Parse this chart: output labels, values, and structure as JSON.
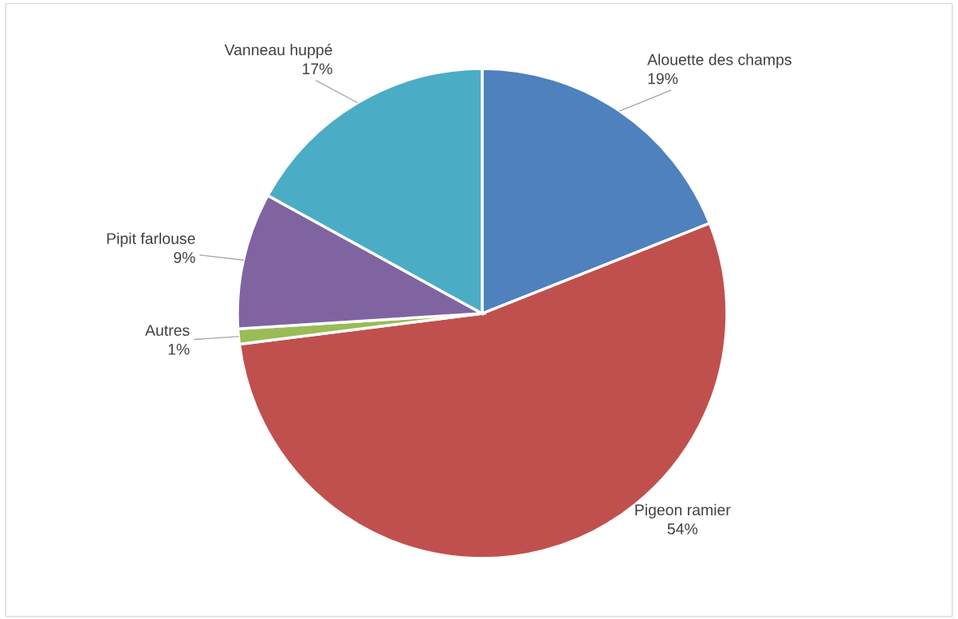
{
  "chart_data": {
    "type": "pie",
    "categories": [
      "Alouette des champs",
      "Pigeon ramier",
      "Autres",
      "Pipit farlouse",
      "Vanneau huppé"
    ],
    "values": [
      19,
      54,
      1,
      9,
      17
    ],
    "value_labels": [
      "19%",
      "54%",
      "1%",
      "9%",
      "17%"
    ],
    "colors": [
      "#4f81bd",
      "#c0504d",
      "#9bbb59",
      "#8064a2",
      "#4bacc6"
    ],
    "legend": false
  }
}
